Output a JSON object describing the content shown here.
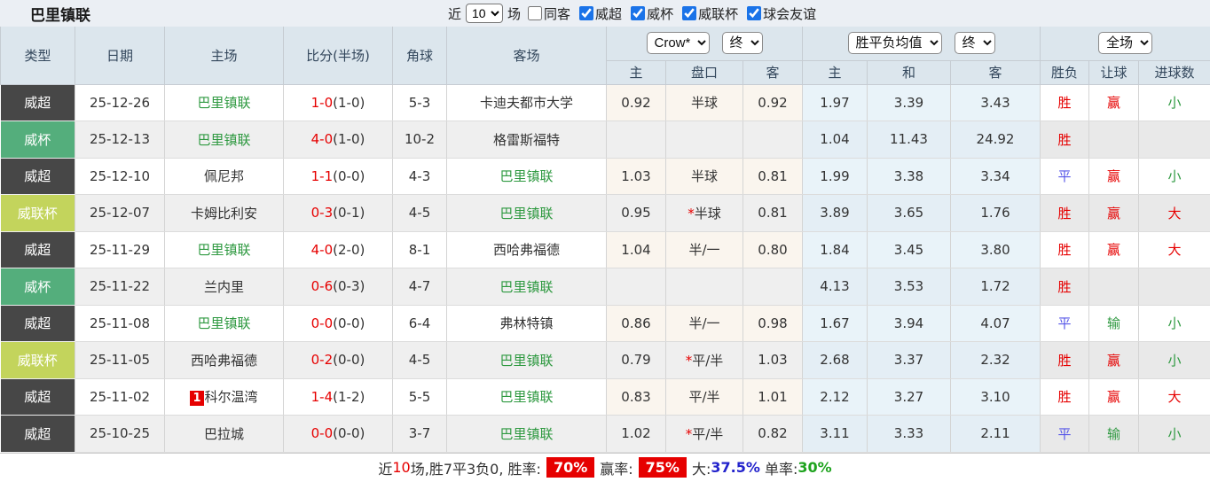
{
  "page": {
    "title": "巴里镇联"
  },
  "filters": {
    "recent_label": "近",
    "recent_value": "10",
    "recent_suffix": "场",
    "same_venue": {
      "label": "同客",
      "checked": false
    },
    "competitions": [
      {
        "label": "威超",
        "checked": true
      },
      {
        "label": "威杯",
        "checked": true
      },
      {
        "label": "威联杯",
        "checked": true
      },
      {
        "label": "球会友谊",
        "checked": true
      }
    ]
  },
  "table": {
    "columns": [
      "类型",
      "日期",
      "主场",
      "比分(半场)",
      "角球",
      "客场"
    ],
    "odds_group": {
      "provider": "Crow*",
      "stage": "终",
      "sub": [
        "主",
        "盘口",
        "客"
      ]
    },
    "avg_group": {
      "label": "胜平负均值",
      "stage": "终",
      "sub": [
        "主",
        "和",
        "客"
      ]
    },
    "result_group": {
      "scope": "全场",
      "sub": [
        "胜负",
        "让球",
        "进球数"
      ]
    },
    "type_styles": {
      "威超": "t-dark",
      "威杯": "t-green",
      "威联杯": "t-lime"
    },
    "value_colors": {
      "胜": "c-red",
      "平": "c-blue",
      "负": "c-green",
      "赢": "c-red",
      "输": "c-green",
      "走": "c-blue",
      "大": "c-red",
      "小": "c-green"
    },
    "rows": [
      {
        "type": "威超",
        "date": "25-12-26",
        "home": "巴里镇联",
        "home_green": true,
        "home_badge": "",
        "score_ft": "1-0",
        "score_ht": "(1-0)",
        "corner": "5-3",
        "away": "卡迪夫都市大学",
        "away_green": false,
        "odds_home": "0.92",
        "handicap": "半球",
        "hcap_star": false,
        "odds_away": "0.92",
        "avg_home": "1.97",
        "avg_draw": "3.39",
        "avg_away": "3.43",
        "result": "胜",
        "handicap_result": "赢",
        "goals": "小"
      },
      {
        "type": "威杯",
        "date": "25-12-13",
        "home": "巴里镇联",
        "home_green": true,
        "home_badge": "",
        "score_ft": "4-0",
        "score_ht": "(1-0)",
        "corner": "10-2",
        "away": "格雷斯福特",
        "away_green": false,
        "odds_home": "",
        "handicap": "",
        "hcap_star": false,
        "odds_away": "",
        "avg_home": "1.04",
        "avg_draw": "11.43",
        "avg_away": "24.92",
        "result": "胜",
        "handicap_result": "",
        "goals": ""
      },
      {
        "type": "威超",
        "date": "25-12-10",
        "home": "佩尼邦",
        "home_green": false,
        "home_badge": "",
        "score_ft": "1-1",
        "score_ht": "(0-0)",
        "corner": "4-3",
        "away": "巴里镇联",
        "away_green": true,
        "odds_home": "1.03",
        "handicap": "半球",
        "hcap_star": false,
        "odds_away": "0.81",
        "avg_home": "1.99",
        "avg_draw": "3.38",
        "avg_away": "3.34",
        "result": "平",
        "handicap_result": "赢",
        "goals": "小"
      },
      {
        "type": "威联杯",
        "date": "25-12-07",
        "home": "卡姆比利安",
        "home_green": false,
        "home_badge": "",
        "score_ft": "0-3",
        "score_ht": "(0-1)",
        "corner": "4-5",
        "away": "巴里镇联",
        "away_green": true,
        "odds_home": "0.95",
        "handicap": "半球",
        "hcap_star": true,
        "odds_away": "0.81",
        "avg_home": "3.89",
        "avg_draw": "3.65",
        "avg_away": "1.76",
        "result": "胜",
        "handicap_result": "赢",
        "goals": "大"
      },
      {
        "type": "威超",
        "date": "25-11-29",
        "home": "巴里镇联",
        "home_green": true,
        "home_badge": "",
        "score_ft": "4-0",
        "score_ht": "(2-0)",
        "corner": "8-1",
        "away": "西哈弗福德",
        "away_green": false,
        "odds_home": "1.04",
        "handicap": "半/一",
        "hcap_star": false,
        "odds_away": "0.80",
        "avg_home": "1.84",
        "avg_draw": "3.45",
        "avg_away": "3.80",
        "result": "胜",
        "handicap_result": "赢",
        "goals": "大"
      },
      {
        "type": "威杯",
        "date": "25-11-22",
        "home": "兰内里",
        "home_green": false,
        "home_badge": "",
        "score_ft": "0-6",
        "score_ht": "(0-3)",
        "corner": "4-7",
        "away": "巴里镇联",
        "away_green": true,
        "odds_home": "",
        "handicap": "",
        "hcap_star": false,
        "odds_away": "",
        "avg_home": "4.13",
        "avg_draw": "3.53",
        "avg_away": "1.72",
        "result": "胜",
        "handicap_result": "",
        "goals": ""
      },
      {
        "type": "威超",
        "date": "25-11-08",
        "home": "巴里镇联",
        "home_green": true,
        "home_badge": "",
        "score_ft": "0-0",
        "score_ht": "(0-0)",
        "corner": "6-4",
        "away": "弗林特镇",
        "away_green": false,
        "odds_home": "0.86",
        "handicap": "半/一",
        "hcap_star": false,
        "odds_away": "0.98",
        "avg_home": "1.67",
        "avg_draw": "3.94",
        "avg_away": "4.07",
        "result": "平",
        "handicap_result": "输",
        "goals": "小"
      },
      {
        "type": "威联杯",
        "date": "25-11-05",
        "home": "西哈弗福德",
        "home_green": false,
        "home_badge": "",
        "score_ft": "0-2",
        "score_ht": "(0-0)",
        "corner": "4-5",
        "away": "巴里镇联",
        "away_green": true,
        "odds_home": "0.79",
        "handicap": "平/半",
        "hcap_star": true,
        "odds_away": "1.03",
        "avg_home": "2.68",
        "avg_draw": "3.37",
        "avg_away": "2.32",
        "result": "胜",
        "handicap_result": "赢",
        "goals": "小"
      },
      {
        "type": "威超",
        "date": "25-11-02",
        "home": "科尔温湾",
        "home_green": false,
        "home_badge": "1",
        "score_ft": "1-4",
        "score_ht": "(1-2)",
        "corner": "5-5",
        "away": "巴里镇联",
        "away_green": true,
        "odds_home": "0.83",
        "handicap": "平/半",
        "hcap_star": false,
        "odds_away": "1.01",
        "avg_home": "2.12",
        "avg_draw": "3.27",
        "avg_away": "3.10",
        "result": "胜",
        "handicap_result": "赢",
        "goals": "大"
      },
      {
        "type": "威超",
        "date": "25-10-25",
        "home": "巴拉城",
        "home_green": false,
        "home_badge": "",
        "score_ft": "0-0",
        "score_ht": "(0-0)",
        "corner": "3-7",
        "away": "巴里镇联",
        "away_green": true,
        "odds_home": "1.02",
        "handicap": "平/半",
        "hcap_star": true,
        "odds_away": "0.82",
        "avg_home": "3.11",
        "avg_draw": "3.33",
        "avg_away": "2.11",
        "result": "平",
        "handicap_result": "输",
        "goals": "小"
      }
    ]
  },
  "summary": {
    "lead": "近",
    "count": "10",
    "mid": "场,胜7平3负0, 胜率:",
    "win_rate": "70%",
    "label_handicap": "赢率:",
    "handicap_rate": "75%",
    "label_big": "大:",
    "big_rate": "37.5%",
    "label_single": " 单率:",
    "single_rate": "30%"
  },
  "colors": {
    "accent_red": "#e60000",
    "team_green": "#2e9940",
    "draw_blue": "#5757e8",
    "type_super": "#474747",
    "type_cup": "#54ae7c",
    "type_league_cup": "#c3d45c",
    "header_bg": "#dce6ed"
  }
}
